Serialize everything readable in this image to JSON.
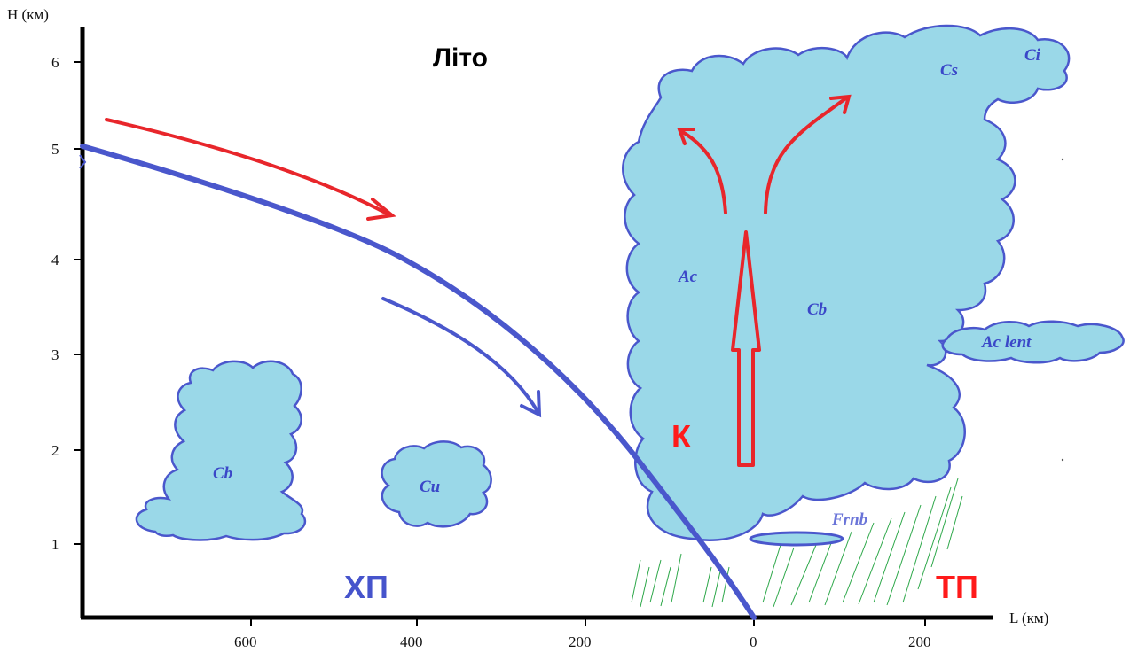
{
  "title": "Літо",
  "axes": {
    "y_label": "H (км)",
    "x_label": "L (км)",
    "y_ticks": [
      "1",
      "2",
      "3",
      "4",
      "5",
      "6"
    ],
    "x_ticks": [
      "600",
      "400",
      "200",
      "0",
      "200"
    ]
  },
  "clouds": {
    "cb_left": "Cb",
    "cu": "Cu",
    "ac": "Ac",
    "cb_main": "Cb",
    "cs": "Cs",
    "ci": "Ci",
    "ac_lent": "Ac lent",
    "frnb": "Frnb"
  },
  "air_masses": {
    "cold": "ХП",
    "warm": "ТП",
    "cold_color": "#4654cc",
    "warm_color": "#ff1a1a"
  },
  "symbols": {
    "k_mark": "К"
  },
  "colors": {
    "front_line": "#4a57cc",
    "warm_flow": "#e8262b",
    "cloud_fill": "#9ad8e8",
    "precip": "#2ea84a"
  }
}
